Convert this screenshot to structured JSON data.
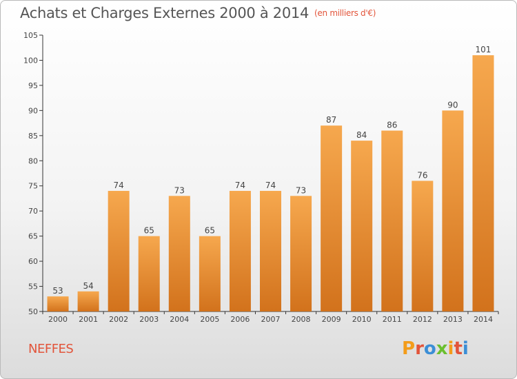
{
  "title": "Achats et Charges Externes 2000 à 2014",
  "unit": "(en milliers d'€)",
  "commune": "NEFFES",
  "logo": {
    "letters": [
      "P",
      "r",
      "o",
      "x",
      "i",
      "t",
      "i"
    ],
    "colors": [
      "#f39c1a",
      "#e2543a",
      "#3b8ed6",
      "#6bbf2f",
      "#f39c1a",
      "#e2543a",
      "#3b8ed6"
    ]
  },
  "colors": {
    "bar_light": "#f6a84e",
    "bar_dark": "#d2721c",
    "axis": "#333333",
    "grid": "#cccccc"
  },
  "chart_data": {
    "type": "bar",
    "title": "Achats et Charges Externes 2000 à 2014",
    "categories": [
      "2000",
      "2001",
      "2002",
      "2003",
      "2004",
      "2005",
      "2006",
      "2007",
      "2008",
      "2009",
      "2010",
      "2011",
      "2012",
      "2013",
      "2014"
    ],
    "values": [
      53,
      54,
      74,
      65,
      73,
      65,
      74,
      74,
      73,
      87,
      84,
      86,
      76,
      90,
      101
    ],
    "ylim": [
      50,
      105
    ],
    "yticks": [
      50,
      55,
      60,
      65,
      70,
      75,
      80,
      85,
      90,
      95,
      100,
      105
    ],
    "grid": false,
    "data_labels": true
  }
}
